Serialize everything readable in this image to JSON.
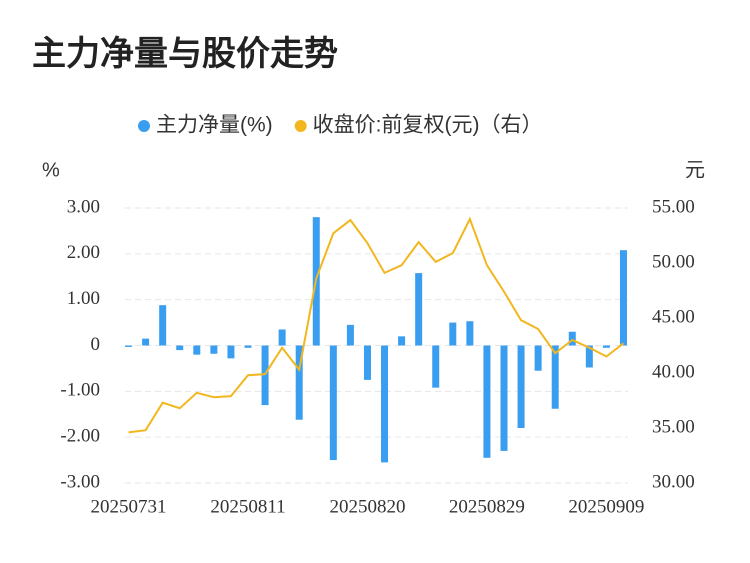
{
  "chart_data": {
    "type": "bar_line",
    "title": "主力净量与股价走势",
    "y_label": "%",
    "y2_label": "元",
    "categories": [
      "20250731",
      null,
      null,
      null,
      null,
      null,
      null,
      "20250811",
      null,
      null,
      null,
      null,
      null,
      null,
      "20250820",
      null,
      null,
      null,
      null,
      null,
      null,
      "20250829",
      null,
      null,
      null,
      null,
      null,
      null,
      "20250909",
      null
    ],
    "series": [
      {
        "name": "主力净量(%)",
        "color": "#3a9ef0",
        "type": "bar",
        "values": [
          -0.03,
          0.15,
          0.88,
          -0.1,
          -0.2,
          -0.18,
          -0.28,
          -0.05,
          -1.3,
          0.35,
          -1.62,
          2.8,
          -2.5,
          0.45,
          -0.75,
          -2.55,
          0.2,
          1.58,
          -0.92,
          0.5,
          0.53,
          -2.45,
          -2.3,
          -1.8,
          -0.55,
          -1.38,
          0.3,
          -0.48,
          -0.05,
          2.08
        ]
      },
      {
        "name": "收盘价:前复权(元)（右）",
        "color": "#f2b71f",
        "type": "line",
        "axis": "y2",
        "values": [
          34.6,
          34.8,
          37.3,
          36.8,
          38.2,
          37.8,
          37.9,
          39.8,
          39.9,
          42.3,
          40.3,
          48.6,
          52.7,
          53.9,
          51.8,
          49.1,
          49.8,
          51.9,
          50.1,
          50.9,
          54.0,
          49.8,
          47.4,
          44.8,
          44.0,
          41.8,
          43.0,
          42.3,
          41.5,
          42.7
        ]
      }
    ],
    "ylim": [
      -3,
      3
    ],
    "yticks": [
      {
        "value": 3,
        "label": "3.00"
      },
      {
        "value": 2,
        "label": "2.00"
      },
      {
        "value": 1,
        "label": "1.00"
      },
      0,
      {
        "value": -1,
        "label": "-1.00"
      },
      {
        "value": -2,
        "label": "-2.00"
      },
      {
        "value": -3,
        "label": "-3.00"
      }
    ],
    "y2lim": [
      30,
      55
    ],
    "y2ticks": [
      {
        "value": 55,
        "label": "55.00"
      },
      {
        "value": 50,
        "label": "50.00"
      },
      {
        "value": 45,
        "label": "45.00"
      },
      {
        "value": 40,
        "label": "40.00"
      },
      {
        "value": 35,
        "label": "35.00"
      },
      {
        "value": 30,
        "label": "30.00"
      }
    ],
    "grid": true,
    "legend": "top"
  }
}
